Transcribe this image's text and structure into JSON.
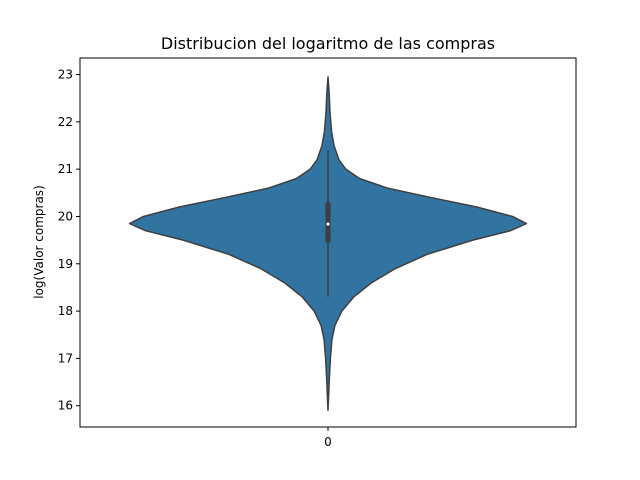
{
  "chart_data": {
    "type": "violin",
    "title": "Distribucion del logaritmo de las compras",
    "xlabel": "",
    "ylabel": "log(Valor compras)",
    "categories": [
      "0"
    ],
    "ylim": [
      15.55,
      23.35
    ],
    "yticks": [
      16,
      17,
      18,
      19,
      20,
      21,
      22,
      23
    ],
    "grid": false,
    "legend": "none",
    "series": [
      {
        "category": "0",
        "color": "#3274a1",
        "outline_color": "#3f3f3f",
        "min": 15.9,
        "q1": 19.45,
        "median": 19.84,
        "q3": 20.3,
        "max": 22.95,
        "whisker_low": 18.3,
        "whisker_high": 21.4,
        "density": [
          [
            15.9,
            0.0
          ],
          [
            16.5,
            0.006
          ],
          [
            17.0,
            0.012
          ],
          [
            17.4,
            0.02
          ],
          [
            17.7,
            0.035
          ],
          [
            18.0,
            0.07
          ],
          [
            18.3,
            0.13
          ],
          [
            18.6,
            0.22
          ],
          [
            18.9,
            0.34
          ],
          [
            19.2,
            0.5
          ],
          [
            19.5,
            0.73
          ],
          [
            19.7,
            0.92
          ],
          [
            19.85,
            1.0
          ],
          [
            20.0,
            0.93
          ],
          [
            20.2,
            0.75
          ],
          [
            20.4,
            0.52
          ],
          [
            20.6,
            0.3
          ],
          [
            20.8,
            0.16
          ],
          [
            21.0,
            0.09
          ],
          [
            21.2,
            0.055
          ],
          [
            21.5,
            0.03
          ],
          [
            21.8,
            0.018
          ],
          [
            22.2,
            0.01
          ],
          [
            22.6,
            0.006
          ],
          [
            22.95,
            0.0
          ]
        ]
      }
    ]
  }
}
